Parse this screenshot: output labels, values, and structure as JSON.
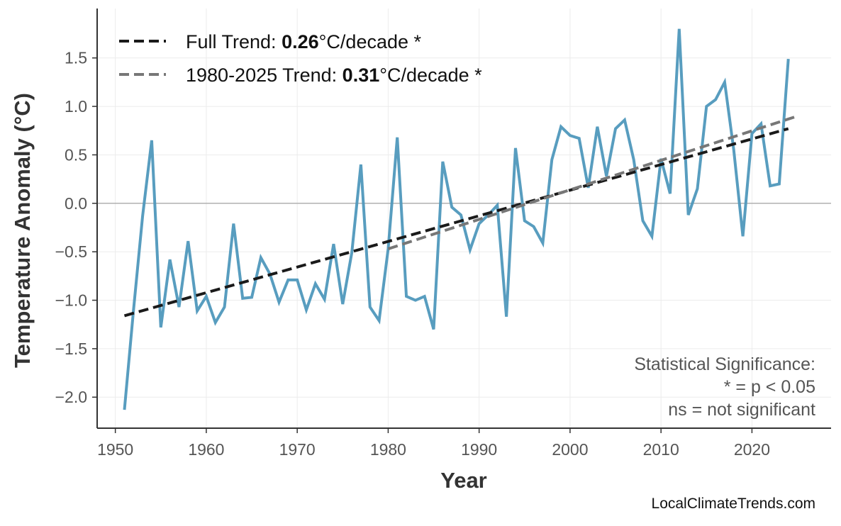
{
  "chart_data": {
    "type": "line",
    "xlabel": "Year",
    "ylabel": "Temperature Anomaly (°C)",
    "xlim": [
      1948,
      2028.7
    ],
    "ylim": [
      -2.32,
      2.01
    ],
    "grid": true,
    "legend_position": "top-left",
    "x_ticks": [
      1950,
      1960,
      1970,
      1980,
      1990,
      2000,
      2010,
      2020
    ],
    "y_ticks": [
      -2.0,
      -1.5,
      -1.0,
      -0.5,
      0.0,
      0.5,
      1.0,
      1.5
    ],
    "y_tick_labels": [
      "−2.0",
      "−1.5",
      "−1.0",
      "−0.5",
      "0.0",
      "0.5",
      "1.0",
      "1.5"
    ],
    "series": [
      {
        "color": "#4f98bc",
        "x": [
          1951,
          1952,
          1953,
          1954,
          1955,
          1956,
          1957,
          1958,
          1959,
          1960,
          1961,
          1962,
          1963,
          1964,
          1965,
          1966,
          1967,
          1968,
          1969,
          1970,
          1971,
          1972,
          1973,
          1974,
          1975,
          1976,
          1977,
          1978,
          1979,
          1980,
          1981,
          1982,
          1983,
          1984,
          1985,
          1986,
          1987,
          1988,
          1989,
          1990,
          1991,
          1992,
          1993,
          1994,
          1995,
          1996,
          1997,
          1998,
          1999,
          2000,
          2001,
          2002,
          2003,
          2004,
          2005,
          2006,
          2007,
          2008,
          2009,
          2010,
          2011,
          2012,
          2013,
          2014,
          2015,
          2016,
          2017,
          2018,
          2019,
          2020,
          2021,
          2022,
          2023,
          2024
        ],
        "y": [
          -2.13,
          -1.1,
          -0.13,
          0.65,
          -1.28,
          -0.58,
          -1.07,
          -0.39,
          -1.11,
          -0.96,
          -1.23,
          -1.07,
          -0.21,
          -0.98,
          -0.97,
          -0.56,
          -0.73,
          -1.02,
          -0.79,
          -0.79,
          -1.1,
          -0.83,
          -0.99,
          -0.42,
          -1.04,
          -0.51,
          0.4,
          -1.07,
          -1.21,
          -0.47,
          0.68,
          -0.96,
          -1.0,
          -0.96,
          -1.3,
          0.43,
          -0.04,
          -0.12,
          -0.48,
          -0.21,
          -0.12,
          -0.02,
          -1.17,
          0.57,
          -0.18,
          -0.24,
          -0.41,
          0.45,
          0.79,
          0.7,
          0.67,
          0.16,
          0.79,
          0.28,
          0.77,
          0.86,
          0.45,
          -0.18,
          -0.34,
          0.46,
          0.1,
          1.8,
          -0.12,
          0.15,
          1.0,
          1.07,
          1.25,
          0.55,
          -0.34,
          0.72,
          0.82,
          0.18,
          0.2,
          1.49
        ]
      }
    ],
    "trends": [
      {
        "name_prefix": "Full Trend: ",
        "value": "0.26",
        "suffix": "°C/decade *",
        "color": "#1a1a1a",
        "x": [
          1951,
          2024
        ],
        "y": [
          -1.16,
          0.77
        ]
      },
      {
        "name_prefix": "1980-2025 Trend: ",
        "value": "0.31",
        "suffix": "°C/decade *",
        "color": "#777777",
        "x": [
          1980,
          2025
        ],
        "y": [
          -0.47,
          0.9
        ]
      }
    ],
    "annotation": [
      "Statistical Significance:",
      "* = p < 0.05",
      "ns = not significant"
    ],
    "watermark": "LocalClimateTrends.com"
  }
}
